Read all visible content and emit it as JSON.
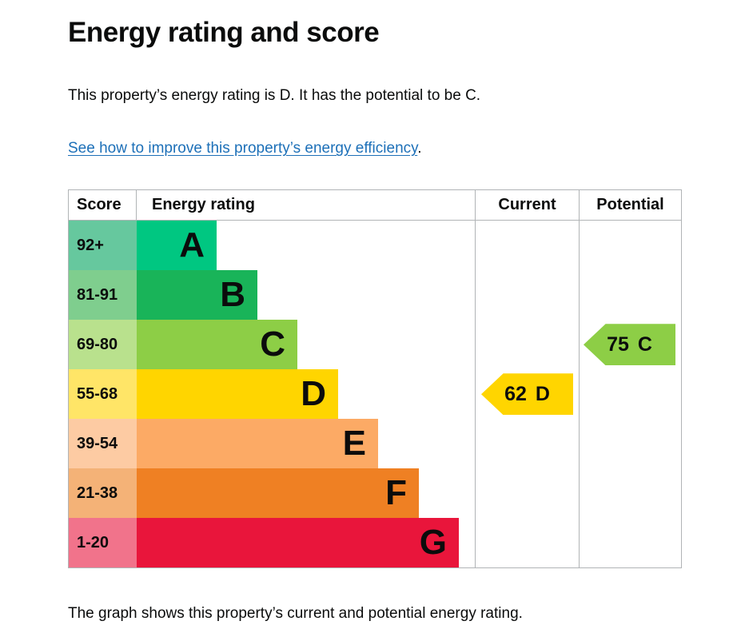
{
  "page": {
    "title": "Energy rating and score",
    "intro": "This property’s energy rating is D. It has the potential to be C.",
    "link_text": "See how to improve this property’s energy efficiency",
    "link_suffix": ".",
    "caption": "The graph shows this property’s current and potential energy rating."
  },
  "table_headers": {
    "score": "Score",
    "rating": "Energy rating",
    "current": "Current",
    "potential": "Potential"
  },
  "chart_data": {
    "type": "bar",
    "title": "Energy rating and score",
    "description": "EPC energy efficiency rating chart with bands A-G; bar length increases from A to G",
    "bands": [
      {
        "letter": "A",
        "range": "92+",
        "color": "#00c781",
        "tint": "#66c89e"
      },
      {
        "letter": "B",
        "range": "81-91",
        "color": "#19b459",
        "tint": "#7fce8e"
      },
      {
        "letter": "C",
        "range": "69-80",
        "color": "#8dce46",
        "tint": "#b9e18d"
      },
      {
        "letter": "D",
        "range": "55-68",
        "color": "#ffd500",
        "tint": "#ffe567"
      },
      {
        "letter": "E",
        "range": "39-54",
        "color": "#fcaa65",
        "tint": "#fdcba3"
      },
      {
        "letter": "F",
        "range": "21-38",
        "color": "#ef8023",
        "tint": "#f4b277"
      },
      {
        "letter": "G",
        "range": "1-20",
        "color": "#e9153b",
        "tint": "#f1738b"
      }
    ],
    "current": {
      "value": "62",
      "band": "D",
      "color": "#ffd500"
    },
    "potential": {
      "value": "75",
      "band": "C",
      "color": "#8dce46"
    }
  },
  "colors": {
    "text": "#0b0c0c",
    "link": "#1d70b8",
    "border": "#b1b4b6"
  }
}
